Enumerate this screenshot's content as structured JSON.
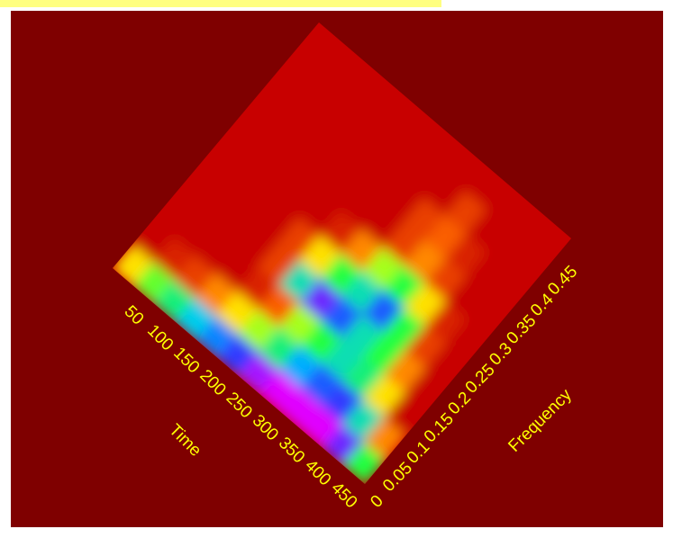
{
  "chart_data": {
    "type": "heatmap",
    "xlabel": "Time",
    "ylabel": "Frequency",
    "xlim": [
      0,
      480
    ],
    "ylim": [
      0,
      0.5
    ],
    "xticks": [
      50,
      100,
      150,
      200,
      250,
      300,
      350,
      400,
      450
    ],
    "yticks": [
      0,
      0.05,
      0.1,
      0.15,
      0.2,
      0.25,
      0.3,
      0.35,
      0.4,
      0.45
    ],
    "x": [
      20,
      60,
      100,
      140,
      180,
      220,
      260,
      300,
      340,
      380,
      420,
      460
    ],
    "y": [
      0.025,
      0.075,
      0.125,
      0.175,
      0.225,
      0.275,
      0.325,
      0.375,
      0.425,
      0.475
    ],
    "z": [
      [
        0.3,
        0,
        0,
        0,
        0,
        0,
        0,
        0,
        0,
        0
      ],
      [
        0.45,
        0.05,
        0,
        0,
        0,
        0,
        0,
        0,
        0,
        0
      ],
      [
        0.55,
        0.1,
        0,
        0,
        0,
        0,
        0,
        0,
        0,
        0
      ],
      [
        0.65,
        0.2,
        0,
        0,
        0,
        0,
        0,
        0,
        0,
        0
      ],
      [
        0.75,
        0.3,
        0.05,
        0.1,
        0.1,
        0,
        0,
        0,
        0,
        0
      ],
      [
        0.85,
        0.4,
        0.15,
        0.6,
        0.3,
        0.05,
        0,
        0,
        0,
        0
      ],
      [
        0.95,
        0.55,
        0.4,
        0.9,
        0.5,
        0.2,
        0,
        0,
        0,
        0
      ],
      [
        1,
        0.7,
        0.5,
        0.8,
        0.6,
        0.4,
        0.1,
        0.1,
        0,
        0
      ],
      [
        1,
        0.8,
        0.6,
        0.6,
        0.8,
        0.5,
        0.2,
        0.15,
        0.1,
        0
      ],
      [
        1,
        0.85,
        0.55,
        0.5,
        0.5,
        0.3,
        0.1,
        0.05,
        0,
        0
      ],
      [
        0.9,
        0.6,
        0.3,
        0.2,
        0.1,
        0.05,
        0,
        0,
        0,
        0
      ],
      [
        0.5,
        0.2,
        0,
        0,
        0,
        0,
        0,
        0,
        0,
        0
      ]
    ],
    "colormap": [
      "#c80000",
      "#ff6a00",
      "#ffff00",
      "#20ff40",
      "#00c8ff",
      "#2040ff",
      "#e000ff"
    ],
    "plot_color": "#c80000",
    "background": "#7f0000",
    "text_color": "#ffff00"
  }
}
